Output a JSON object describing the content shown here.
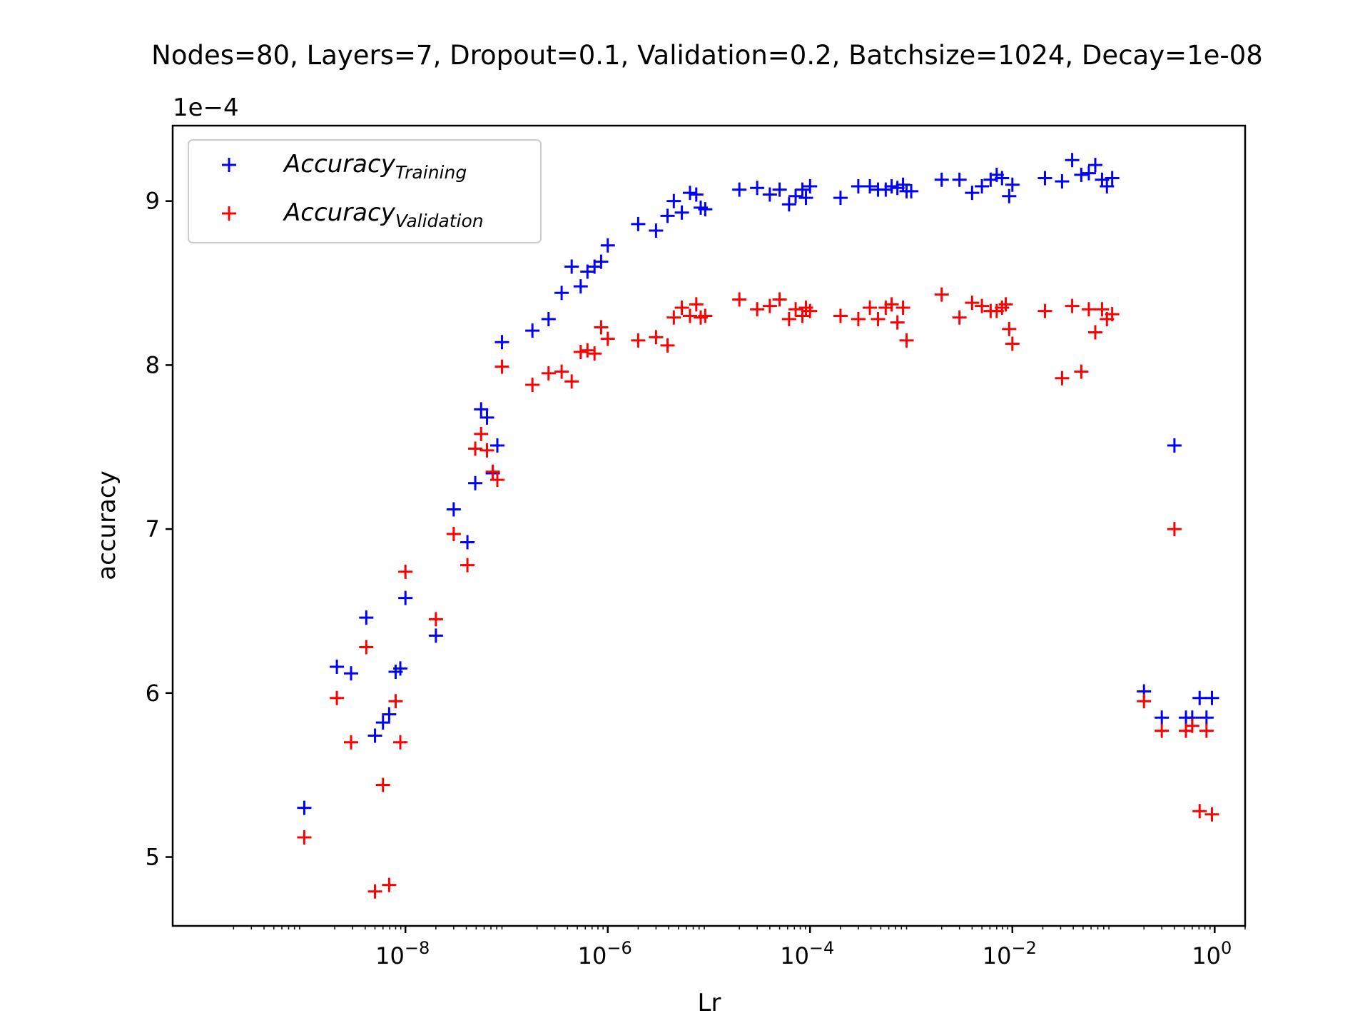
{
  "chart_data": {
    "type": "scatter",
    "title": "Nodes=80, Layers=7, Dropout=0.1, Validation=0.2, Batchsize=1024, Decay=1e-08",
    "xlabel": "Lr",
    "ylabel": "accuracy",
    "y_offset_label": "1e−4",
    "x_scale": "log",
    "xlim": [
      5e-11,
      2.0
    ],
    "ylim": [
      4.58,
      9.46
    ],
    "grid": false,
    "legend_position": "upper-left",
    "x_ticks": [
      {
        "value": 1e-08,
        "base": "10",
        "exp": "−8"
      },
      {
        "value": 1e-06,
        "base": "10",
        "exp": "−6"
      },
      {
        "value": 0.0001,
        "base": "10",
        "exp": "−4"
      },
      {
        "value": 0.01,
        "base": "10",
        "exp": "−2"
      },
      {
        "value": 1,
        "base": "10",
        "exp": "0"
      }
    ],
    "y_ticks": [
      {
        "value": 5,
        "label": "5"
      },
      {
        "value": 6,
        "label": "6"
      },
      {
        "value": 7,
        "label": "7"
      },
      {
        "value": 8,
        "label": "8"
      },
      {
        "value": 9,
        "label": "9"
      }
    ],
    "series": [
      {
        "name": "Accuracy",
        "name_sub": "Training",
        "color": "#0000ff",
        "marker": "+",
        "points": [
          [
            1e-09,
            5.3
          ],
          [
            2.1e-09,
            6.16
          ],
          [
            2.9e-09,
            6.12
          ],
          [
            4.1e-09,
            6.46
          ],
          [
            5e-09,
            5.74
          ],
          [
            6e-09,
            5.82
          ],
          [
            6.9e-09,
            5.87
          ],
          [
            8e-09,
            6.13
          ],
          [
            8.9e-09,
            6.15
          ],
          [
            1e-08,
            6.58
          ],
          [
            2e-08,
            6.35
          ],
          [
            3e-08,
            7.12
          ],
          [
            4.1e-08,
            6.92
          ],
          [
            4.9e-08,
            7.28
          ],
          [
            5.6e-08,
            7.73
          ],
          [
            6.4e-08,
            7.68
          ],
          [
            7.3e-08,
            7.34
          ],
          [
            8.1e-08,
            7.51
          ],
          [
            9e-08,
            8.14
          ],
          [
            1.8e-07,
            8.21
          ],
          [
            2.6e-07,
            8.28
          ],
          [
            3.5e-07,
            8.44
          ],
          [
            4.4e-07,
            8.6
          ],
          [
            5.4e-07,
            8.48
          ],
          [
            6.3e-07,
            8.57
          ],
          [
            7.4e-07,
            8.6
          ],
          [
            8.6e-07,
            8.63
          ],
          [
            1e-06,
            8.73
          ],
          [
            2e-06,
            8.86
          ],
          [
            3e-06,
            8.82
          ],
          [
            3.9e-06,
            8.91
          ],
          [
            4.5e-06,
            9.0
          ],
          [
            5.4e-06,
            8.93
          ],
          [
            6.5e-06,
            9.05
          ],
          [
            7.5e-06,
            9.04
          ],
          [
            8.3e-06,
            8.96
          ],
          [
            9.2e-06,
            8.95
          ],
          [
            2e-05,
            9.07
          ],
          [
            3e-05,
            9.08
          ],
          [
            4e-05,
            9.04
          ],
          [
            5e-05,
            9.07
          ],
          [
            6.2e-05,
            8.98
          ],
          [
            7.2e-05,
            9.03
          ],
          [
            8.4e-05,
            9.07
          ],
          [
            9.1e-05,
            9.02
          ],
          [
            0.0001,
            9.09
          ],
          [
            0.0002,
            9.02
          ],
          [
            0.0003,
            9.09
          ],
          [
            0.00039,
            9.09
          ],
          [
            0.00047,
            9.07
          ],
          [
            0.00056,
            9.07
          ],
          [
            0.00064,
            9.09
          ],
          [
            0.00073,
            9.08
          ],
          [
            0.00083,
            9.1
          ],
          [
            0.0009,
            9.06
          ],
          [
            0.001,
            9.06
          ],
          [
            0.002,
            9.13
          ],
          [
            0.003,
            9.13
          ],
          [
            0.004,
            9.05
          ],
          [
            0.005,
            9.09
          ],
          [
            0.0061,
            9.13
          ],
          [
            0.007,
            9.16
          ],
          [
            0.0079,
            9.14
          ],
          [
            0.0093,
            9.03
          ],
          [
            0.01,
            9.1
          ],
          [
            0.021,
            9.14
          ],
          [
            0.031,
            9.12
          ],
          [
            0.039,
            9.25
          ],
          [
            0.048,
            9.16
          ],
          [
            0.057,
            9.17
          ],
          [
            0.066,
            9.22
          ],
          [
            0.077,
            9.13
          ],
          [
            0.086,
            9.09
          ],
          [
            0.097,
            9.14
          ],
          [
            0.2,
            6.01
          ],
          [
            0.3,
            5.85
          ],
          [
            0.4,
            7.51
          ],
          [
            0.52,
            5.85
          ],
          [
            0.6,
            5.85
          ],
          [
            0.71,
            5.97
          ],
          [
            0.83,
            5.85
          ],
          [
            0.94,
            5.97
          ]
        ]
      },
      {
        "name": "Accuracy",
        "name_sub": "Validation",
        "color": "#ff0000",
        "marker": "+",
        "points": [
          [
            1e-09,
            5.12
          ],
          [
            2.1e-09,
            5.97
          ],
          [
            2.9e-09,
            5.7
          ],
          [
            4.1e-09,
            6.28
          ],
          [
            5e-09,
            4.79
          ],
          [
            6e-09,
            5.44
          ],
          [
            6.9e-09,
            4.83
          ],
          [
            8e-09,
            5.95
          ],
          [
            8.9e-09,
            5.7
          ],
          [
            1e-08,
            6.74
          ],
          [
            2e-08,
            6.45
          ],
          [
            3e-08,
            6.97
          ],
          [
            4.1e-08,
            6.78
          ],
          [
            4.9e-08,
            7.49
          ],
          [
            5.6e-08,
            7.58
          ],
          [
            6.4e-08,
            7.48
          ],
          [
            7.3e-08,
            7.35
          ],
          [
            8.1e-08,
            7.3
          ],
          [
            9e-08,
            7.99
          ],
          [
            1.8e-07,
            7.88
          ],
          [
            2.6e-07,
            7.95
          ],
          [
            3.5e-07,
            7.96
          ],
          [
            4.4e-07,
            7.9
          ],
          [
            5.4e-07,
            8.08
          ],
          [
            6.3e-07,
            8.09
          ],
          [
            7.4e-07,
            8.07
          ],
          [
            8.6e-07,
            8.23
          ],
          [
            1e-06,
            8.16
          ],
          [
            2e-06,
            8.15
          ],
          [
            3e-06,
            8.17
          ],
          [
            3.9e-06,
            8.12
          ],
          [
            4.5e-06,
            8.29
          ],
          [
            5.4e-06,
            8.35
          ],
          [
            6.5e-06,
            8.3
          ],
          [
            7.5e-06,
            8.37
          ],
          [
            8.3e-06,
            8.29
          ],
          [
            9.2e-06,
            8.3
          ],
          [
            2e-05,
            8.4
          ],
          [
            3e-05,
            8.34
          ],
          [
            4e-05,
            8.36
          ],
          [
            5e-05,
            8.4
          ],
          [
            6.2e-05,
            8.28
          ],
          [
            7.2e-05,
            8.34
          ],
          [
            8.4e-05,
            8.3
          ],
          [
            9.1e-05,
            8.35
          ],
          [
            0.0001,
            8.33
          ],
          [
            0.0002,
            8.3
          ],
          [
            0.0003,
            8.28
          ],
          [
            0.00039,
            8.35
          ],
          [
            0.00047,
            8.28
          ],
          [
            0.00056,
            8.35
          ],
          [
            0.00064,
            8.37
          ],
          [
            0.00073,
            8.26
          ],
          [
            0.00083,
            8.35
          ],
          [
            0.0009,
            8.15
          ],
          [
            0.002,
            8.43
          ],
          [
            0.003,
            8.29
          ],
          [
            0.004,
            8.38
          ],
          [
            0.005,
            8.36
          ],
          [
            0.0061,
            8.33
          ],
          [
            0.007,
            8.33
          ],
          [
            0.0079,
            8.35
          ],
          [
            0.0086,
            8.37
          ],
          [
            0.0093,
            8.22
          ],
          [
            0.01,
            8.13
          ],
          [
            0.021,
            8.33
          ],
          [
            0.031,
            7.92
          ],
          [
            0.039,
            8.36
          ],
          [
            0.048,
            7.96
          ],
          [
            0.057,
            8.34
          ],
          [
            0.066,
            8.2
          ],
          [
            0.077,
            8.34
          ],
          [
            0.086,
            8.28
          ],
          [
            0.097,
            8.31
          ],
          [
            0.2,
            5.95
          ],
          [
            0.3,
            5.77
          ],
          [
            0.4,
            7.0
          ],
          [
            0.52,
            5.77
          ],
          [
            0.6,
            5.8
          ],
          [
            0.71,
            5.28
          ],
          [
            0.83,
            5.77
          ],
          [
            0.94,
            5.26
          ]
        ]
      }
    ]
  }
}
